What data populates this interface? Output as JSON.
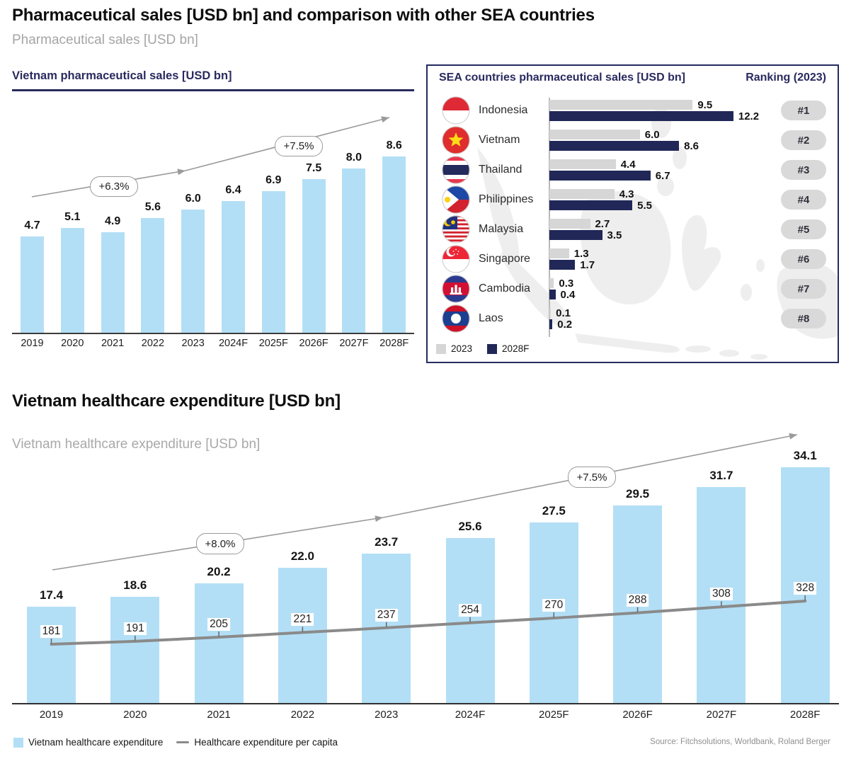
{
  "page": {
    "title": "Pharmaceutical sales [USD bn] and comparison with other SEA countries",
    "subtitle": "Pharmaceutical sales [USD bn]"
  },
  "colors": {
    "accent_navy": "#252C61",
    "bar_light_blue": "#B3DFF6",
    "bar_gray": "#D6D6D6",
    "bar_dark_navy": "#212858",
    "pill_gray": "#D9D9D9",
    "arrow_gray": "#9A9A9A",
    "per_capita_line_gray": "#8A8A8A"
  },
  "chart_data": [
    {
      "id": "vietnam-pharma-sales",
      "type": "bar",
      "title": "Vietnam pharmaceutical sales [USD bn]",
      "categories": [
        "2019",
        "2020",
        "2021",
        "2022",
        "2023",
        "2024F",
        "2025F",
        "2026F",
        "2027F",
        "2028F"
      ],
      "values": [
        4.7,
        5.1,
        4.9,
        5.6,
        6.0,
        6.4,
        6.9,
        7.5,
        8.0,
        8.6
      ],
      "growth_annotations": [
        "+6.3%",
        "+7.5%"
      ],
      "ylim": [
        0,
        9
      ],
      "grid": false,
      "bar_color": "#B3DFF6"
    },
    {
      "id": "sea-countries-pharma-sales",
      "type": "bar",
      "orientation": "horizontal",
      "title": "SEA countries pharmaceutical sales [USD bn]",
      "ranking_title": "Ranking (2023)",
      "categories": [
        "Indonesia",
        "Vietnam",
        "Thailand",
        "Philippines",
        "Malaysia",
        "Singapore",
        "Cambodia",
        "Laos"
      ],
      "flags": [
        "indonesia-flag-icon",
        "vietnam-flag-icon",
        "thailand-flag-icon",
        "philippines-flag-icon",
        "malaysia-flag-icon",
        "singapore-flag-icon",
        "cambodia-flag-icon",
        "laos-flag-icon"
      ],
      "series": [
        {
          "name": "2023",
          "color": "#D6D6D6",
          "values": [
            9.5,
            6.0,
            4.4,
            4.3,
            2.7,
            1.3,
            0.3,
            0.1
          ]
        },
        {
          "name": "2028F",
          "color": "#212858",
          "values": [
            12.2,
            8.6,
            6.7,
            5.5,
            3.5,
            1.7,
            0.4,
            0.2
          ]
        }
      ],
      "ranking": [
        "#1",
        "#2",
        "#3",
        "#4",
        "#5",
        "#6",
        "#7",
        "#8"
      ],
      "legend": [
        "2023",
        "2028F"
      ],
      "xlim": [
        0,
        13
      ]
    },
    {
      "id": "vietnam-healthcare-expenditure",
      "type": "bar+line",
      "title": "Vietnam healthcare expenditure [USD bn]",
      "subtitle": "Vietnam healthcare expenditure [USD bn]",
      "categories": [
        "2019",
        "2020",
        "2021",
        "2022",
        "2023",
        "2024F",
        "2025F",
        "2026F",
        "2027F",
        "2028F"
      ],
      "series": [
        {
          "name": "Vietnam healthcare expenditure",
          "type": "bar",
          "color": "#B3DFF6",
          "values": [
            17.4,
            18.6,
            20.2,
            22.0,
            23.7,
            25.6,
            27.5,
            29.5,
            31.7,
            34.1
          ]
        },
        {
          "name": "Healthcare expenditure per capita",
          "type": "line",
          "color": "#8A8A8A",
          "values": [
            181,
            191,
            205,
            221,
            237,
            254,
            270,
            288,
            308,
            328
          ]
        }
      ],
      "growth_annotations": [
        "+8.0%",
        "+7.5%"
      ],
      "legend": [
        "Vietnam healthcare expenditure",
        "Healthcare expenditure per capita"
      ],
      "grid": false
    }
  ],
  "source": "Source: Fitchsolutions, Worldbank, Roland Berger"
}
